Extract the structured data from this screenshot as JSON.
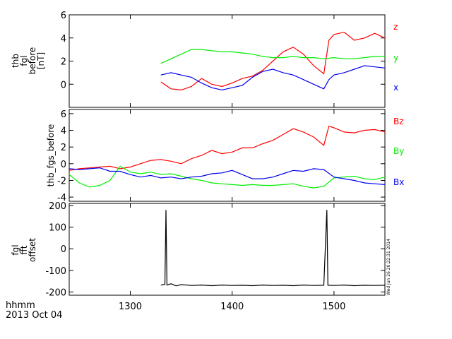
{
  "chart_data": [
    {
      "type": "line",
      "ylabel": [
        "thb",
        "fgl",
        "before",
        "[nT]"
      ],
      "ylim": [
        -2,
        6
      ],
      "yticks": [
        6,
        4,
        2,
        0
      ],
      "xlim": [
        1240,
        1550
      ],
      "series": [
        {
          "name": "z",
          "color": "#ff0000",
          "points": [
            [
              1330,
              0.2
            ],
            [
              1340,
              -0.4
            ],
            [
              1350,
              -0.5
            ],
            [
              1360,
              -0.2
            ],
            [
              1370,
              0.5
            ],
            [
              1380,
              0.0
            ],
            [
              1390,
              -0.2
            ],
            [
              1400,
              0.1
            ],
            [
              1410,
              0.5
            ],
            [
              1420,
              0.7
            ],
            [
              1430,
              1.2
            ],
            [
              1440,
              2.0
            ],
            [
              1450,
              2.8
            ],
            [
              1460,
              3.2
            ],
            [
              1470,
              2.6
            ],
            [
              1480,
              1.6
            ],
            [
              1490,
              0.9
            ],
            [
              1495,
              3.8
            ],
            [
              1500,
              4.3
            ],
            [
              1510,
              4.5
            ],
            [
              1520,
              3.8
            ],
            [
              1530,
              4.0
            ],
            [
              1540,
              4.4
            ],
            [
              1550,
              4.0
            ]
          ]
        },
        {
          "name": "y",
          "color": "#00ee00",
          "points": [
            [
              1330,
              1.8
            ],
            [
              1340,
              2.2
            ],
            [
              1350,
              2.6
            ],
            [
              1360,
              3.0
            ],
            [
              1370,
              3.0
            ],
            [
              1380,
              2.9
            ],
            [
              1390,
              2.8
            ],
            [
              1400,
              2.8
            ],
            [
              1410,
              2.7
            ],
            [
              1420,
              2.6
            ],
            [
              1430,
              2.4
            ],
            [
              1440,
              2.3
            ],
            [
              1450,
              2.3
            ],
            [
              1460,
              2.4
            ],
            [
              1470,
              2.3
            ],
            [
              1480,
              2.3
            ],
            [
              1490,
              2.2
            ],
            [
              1500,
              2.3
            ],
            [
              1510,
              2.2
            ],
            [
              1520,
              2.2
            ],
            [
              1530,
              2.3
            ],
            [
              1540,
              2.4
            ],
            [
              1550,
              2.4
            ]
          ]
        },
        {
          "name": "x",
          "color": "#0000ee",
          "points": [
            [
              1330,
              0.8
            ],
            [
              1340,
              1.0
            ],
            [
              1350,
              0.8
            ],
            [
              1360,
              0.6
            ],
            [
              1370,
              0.1
            ],
            [
              1380,
              -0.3
            ],
            [
              1390,
              -0.5
            ],
            [
              1400,
              -0.3
            ],
            [
              1410,
              -0.1
            ],
            [
              1420,
              0.6
            ],
            [
              1430,
              1.1
            ],
            [
              1440,
              1.3
            ],
            [
              1450,
              1.0
            ],
            [
              1460,
              0.8
            ],
            [
              1470,
              0.4
            ],
            [
              1480,
              0.0
            ],
            [
              1490,
              -0.4
            ],
            [
              1495,
              0.4
            ],
            [
              1500,
              0.8
            ],
            [
              1510,
              1.0
            ],
            [
              1520,
              1.3
            ],
            [
              1530,
              1.6
            ],
            [
              1540,
              1.5
            ],
            [
              1550,
              1.4
            ]
          ]
        }
      ]
    },
    {
      "type": "line",
      "ylabel": [
        "thb_fgs_before"
      ],
      "ylim": [
        -4.5,
        6.5
      ],
      "yticks": [
        6,
        4,
        2,
        0,
        -2,
        -4
      ],
      "xlim": [
        1240,
        1550
      ],
      "series": [
        {
          "name": "Bz",
          "color": "#ff0000",
          "points": [
            [
              1240,
              -0.8
            ],
            [
              1250,
              -0.6
            ],
            [
              1260,
              -0.5
            ],
            [
              1270,
              -0.4
            ],
            [
              1280,
              -0.3
            ],
            [
              1290,
              -0.6
            ],
            [
              1300,
              -0.4
            ],
            [
              1310,
              0.0
            ],
            [
              1320,
              0.4
            ],
            [
              1330,
              0.5
            ],
            [
              1340,
              0.3
            ],
            [
              1350,
              0.0
            ],
            [
              1360,
              0.6
            ],
            [
              1370,
              1.0
            ],
            [
              1380,
              1.6
            ],
            [
              1390,
              1.2
            ],
            [
              1400,
              1.4
            ],
            [
              1410,
              1.9
            ],
            [
              1420,
              1.9
            ],
            [
              1430,
              2.4
            ],
            [
              1440,
              2.8
            ],
            [
              1450,
              3.5
            ],
            [
              1460,
              4.2
            ],
            [
              1470,
              3.8
            ],
            [
              1480,
              3.2
            ],
            [
              1490,
              2.2
            ],
            [
              1495,
              4.5
            ],
            [
              1500,
              4.3
            ],
            [
              1510,
              3.8
            ],
            [
              1520,
              3.7
            ],
            [
              1530,
              4.0
            ],
            [
              1540,
              4.1
            ],
            [
              1550,
              3.8
            ]
          ]
        },
        {
          "name": "By",
          "color": "#00ee00",
          "points": [
            [
              1240,
              -1.3
            ],
            [
              1250,
              -2.3
            ],
            [
              1260,
              -2.8
            ],
            [
              1270,
              -2.6
            ],
            [
              1280,
              -2.0
            ],
            [
              1290,
              -0.3
            ],
            [
              1300,
              -1.0
            ],
            [
              1310,
              -1.2
            ],
            [
              1320,
              -1.0
            ],
            [
              1330,
              -1.3
            ],
            [
              1340,
              -1.2
            ],
            [
              1350,
              -1.5
            ],
            [
              1360,
              -1.8
            ],
            [
              1370,
              -2.0
            ],
            [
              1380,
              -2.3
            ],
            [
              1390,
              -2.4
            ],
            [
              1400,
              -2.5
            ],
            [
              1410,
              -2.6
            ],
            [
              1420,
              -2.5
            ],
            [
              1430,
              -2.6
            ],
            [
              1440,
              -2.6
            ],
            [
              1450,
              -2.5
            ],
            [
              1460,
              -2.4
            ],
            [
              1470,
              -2.7
            ],
            [
              1480,
              -2.9
            ],
            [
              1490,
              -2.7
            ],
            [
              1500,
              -1.7
            ],
            [
              1510,
              -1.6
            ],
            [
              1520,
              -1.5
            ],
            [
              1530,
              -1.8
            ],
            [
              1540,
              -1.9
            ],
            [
              1550,
              -1.6
            ]
          ]
        },
        {
          "name": "Bx",
          "color": "#0000ee",
          "points": [
            [
              1240,
              -0.6
            ],
            [
              1250,
              -0.7
            ],
            [
              1260,
              -0.6
            ],
            [
              1270,
              -0.5
            ],
            [
              1280,
              -0.9
            ],
            [
              1290,
              -0.9
            ],
            [
              1300,
              -1.3
            ],
            [
              1310,
              -1.6
            ],
            [
              1320,
              -1.4
            ],
            [
              1330,
              -1.7
            ],
            [
              1340,
              -1.6
            ],
            [
              1350,
              -1.8
            ],
            [
              1360,
              -1.6
            ],
            [
              1370,
              -1.5
            ],
            [
              1380,
              -1.2
            ],
            [
              1390,
              -1.1
            ],
            [
              1400,
              -0.8
            ],
            [
              1410,
              -1.3
            ],
            [
              1420,
              -1.8
            ],
            [
              1430,
              -1.8
            ],
            [
              1440,
              -1.6
            ],
            [
              1450,
              -1.2
            ],
            [
              1460,
              -0.8
            ],
            [
              1470,
              -0.9
            ],
            [
              1480,
              -0.6
            ],
            [
              1490,
              -0.7
            ],
            [
              1500,
              -1.6
            ],
            [
              1510,
              -1.8
            ],
            [
              1520,
              -2.0
            ],
            [
              1530,
              -2.3
            ],
            [
              1540,
              -2.4
            ],
            [
              1550,
              -2.5
            ]
          ]
        }
      ]
    },
    {
      "type": "line",
      "ylabel": [
        "fgl",
        "fft",
        "offset"
      ],
      "ylim": [
        -215,
        210
      ],
      "yticks": [
        200,
        100,
        0,
        -100,
        -200
      ],
      "xlim": [
        1240,
        1550
      ],
      "series": [
        {
          "name": "",
          "color": "#000000",
          "points": [
            [
              1330,
              -168
            ],
            [
              1334,
              -165
            ],
            [
              1335,
              180
            ],
            [
              1336,
              -168
            ],
            [
              1340,
              -162
            ],
            [
              1345,
              -172
            ],
            [
              1350,
              -166
            ],
            [
              1360,
              -170
            ],
            [
              1370,
              -168
            ],
            [
              1380,
              -171
            ],
            [
              1390,
              -168
            ],
            [
              1400,
              -170
            ],
            [
              1410,
              -169
            ],
            [
              1420,
              -171
            ],
            [
              1430,
              -168
            ],
            [
              1440,
              -170
            ],
            [
              1450,
              -169
            ],
            [
              1460,
              -171
            ],
            [
              1470,
              -168
            ],
            [
              1480,
              -170
            ],
            [
              1490,
              -169
            ],
            [
              1493,
              180
            ],
            [
              1494,
              -169
            ],
            [
              1500,
              -170
            ],
            [
              1510,
              -168
            ],
            [
              1520,
              -171
            ],
            [
              1530,
              -169
            ],
            [
              1540,
              -170
            ],
            [
              1550,
              -169
            ]
          ]
        }
      ],
      "stamp": "Wed Jun 26 20:22:31 2014"
    }
  ],
  "xaxis": {
    "ticks": [
      1300,
      1400,
      1500
    ],
    "corner_label": "hhmm",
    "date_label": "2013 Oct 04"
  }
}
